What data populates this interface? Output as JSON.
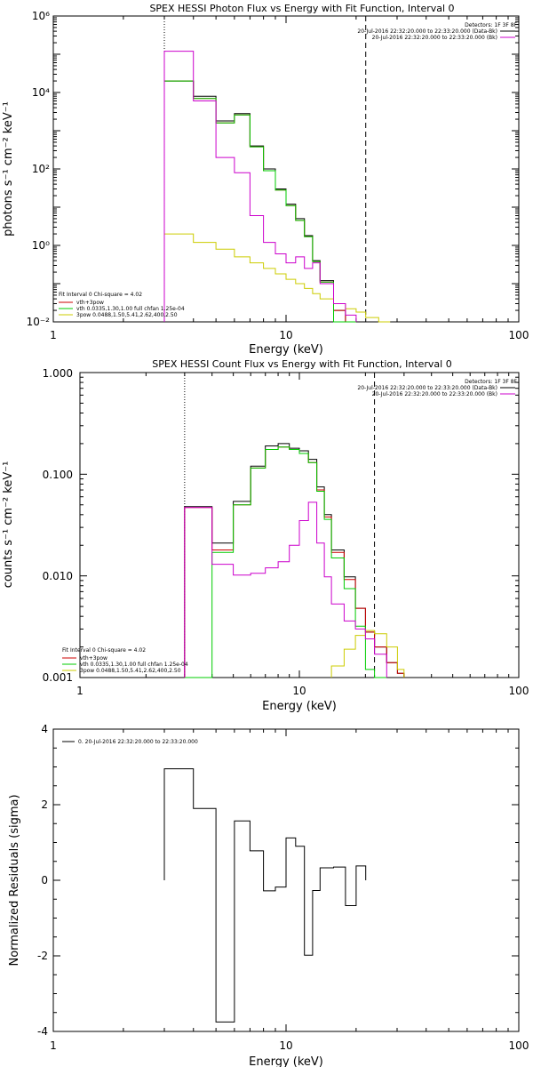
{
  "colors": {
    "total": "#000000",
    "vth_plus_3pow": "#cc0000",
    "vth": "#00cc00",
    "three_pow": "#cccc00",
    "model": "#cc00cc"
  },
  "chart_data": [
    {
      "type": "line",
      "title": "SPEX HESSI Photon Flux vs Energy with Fit Function, Interval 0",
      "xlabel": "Energy (keV)",
      "ylabel": "photons s⁻¹ cm⁻² keV⁻¹",
      "xscale": "log",
      "yscale": "log",
      "xlim": [
        1,
        100
      ],
      "ylim": [
        0.01,
        1000000
      ],
      "x_ticks": [
        "1",
        "10",
        "100"
      ],
      "y_ticks": [
        "10⁻²",
        "10⁰",
        "10²",
        "10⁴",
        "10⁶"
      ],
      "legend_header": [
        "Detectors: 1F 3F 8F",
        "20-Jul-2016 22:32:20.000 to 22:33:20.000 (Data-Bk)",
        "20-Jul-2016 22:32:20.000 to 22:33:20.000 (Bk)"
      ],
      "fit_legend": [
        "Fit Interval 0   Chi-square = 4.02",
        "vth+3pow",
        "vth 0.0335,1.30,1.00  full chfan 1.25e-04",
        "3pow 0.0488,1.50,5.41,2.62,400,2.50"
      ],
      "vlines": [
        {
          "x": 3,
          "style": "dotted"
        },
        {
          "x": 22,
          "style": "dashed"
        }
      ],
      "bin_edges": [
        3,
        4,
        5,
        6,
        7,
        8,
        9,
        10,
        11,
        12,
        13,
        14,
        16,
        18,
        20,
        22,
        25,
        28,
        30
      ],
      "series": [
        {
          "name": "Data-Bk",
          "color_key": "total",
          "values": [
            20000,
            8000,
            1800,
            2800,
            400,
            100,
            30,
            12,
            5,
            1.8,
            0.4,
            0.12,
            0.02,
            0.01,
            null,
            null,
            null,
            null
          ]
        },
        {
          "name": "vth+3pow",
          "color_key": "vth_plus_3pow",
          "values": [
            20000,
            7000,
            1600,
            2600,
            380,
            90,
            28,
            11,
            4.5,
            1.7,
            0.38,
            0.11,
            0.02,
            0.01,
            null,
            null,
            null,
            null
          ]
        },
        {
          "name": "vth",
          "color_key": "vth",
          "values": [
            20000,
            7000,
            1600,
            2600,
            380,
            90,
            28,
            11,
            4.5,
            1.7,
            0.38,
            0.11,
            0.01,
            0.005,
            null,
            null,
            null,
            null
          ]
        },
        {
          "name": "3pow",
          "color_key": "three_pow",
          "values": [
            2,
            1.2,
            0.8,
            0.5,
            0.35,
            0.25,
            0.18,
            0.13,
            0.1,
            0.075,
            0.055,
            0.04,
            0.03,
            0.022,
            0.018,
            0.013,
            0.01,
            null
          ]
        },
        {
          "name": "Bk",
          "color_key": "model",
          "values": [
            120000,
            6000,
            200,
            80,
            6,
            1.2,
            0.6,
            0.35,
            0.5,
            0.25,
            0.35,
            0.1,
            0.03,
            0.015,
            null,
            null,
            null,
            null
          ]
        }
      ]
    },
    {
      "type": "line",
      "title": "SPEX HESSI Count Flux vs Energy with Fit Function, Interval 0",
      "xlabel": "Energy (keV)",
      "ylabel": "counts s⁻¹ cm⁻² keV⁻¹",
      "xscale": "log",
      "yscale": "log",
      "xlim": [
        1,
        100
      ],
      "ylim": [
        0.001,
        1
      ],
      "x_ticks": [
        "1",
        "10",
        "100"
      ],
      "y_ticks": [
        "0.001",
        "0.010",
        "0.100",
        "1.000"
      ],
      "legend_header": [
        "Detectors: 1F 3F 8F",
        "20-Jul-2016 22:32:20.000 to 22:33:20.000 (Data-Bk)",
        "20-Jul-2016 22:32:20.000 to 22:33:20.000 (Bk)"
      ],
      "fit_legend": [
        "Fit Interval 0   Chi-square = 4.02",
        "vth+3pow",
        "vth 0.0335,1.30,1.00  full chfan 1.25e-04",
        "3pow 0.0488,1.50,5.41,2.62,400,2.50"
      ],
      "vlines": [
        {
          "x": 3,
          "style": "dotted"
        },
        {
          "x": 22,
          "style": "dashed"
        }
      ],
      "bin_edges": [
        3,
        4,
        5,
        6,
        7,
        8,
        9,
        10,
        11,
        12,
        13,
        14,
        16,
        18,
        20,
        22,
        25,
        28,
        30
      ],
      "series": [
        {
          "name": "Data-Bk",
          "color_key": "total",
          "values": [
            0.048,
            0.021,
            0.054,
            0.12,
            0.19,
            0.2,
            0.18,
            0.17,
            0.14,
            0.075,
            0.04,
            0.018,
            0.0098,
            0.0048,
            0.0028,
            0.002,
            0.0014,
            0.0011
          ]
        },
        {
          "name": "vth+3pow",
          "color_key": "vth_plus_3pow",
          "values": [
            0.047,
            0.018,
            0.05,
            0.115,
            0.175,
            0.185,
            0.175,
            0.16,
            0.13,
            0.07,
            0.038,
            0.017,
            0.0092,
            0.0048,
            0.0028,
            0.002,
            0.0014,
            0.0011
          ]
        },
        {
          "name": "vth",
          "color_key": "vth",
          "values": [
            0.0008,
            0.017,
            0.05,
            0.115,
            0.175,
            0.185,
            0.175,
            0.16,
            0.13,
            0.068,
            0.036,
            0.015,
            0.0075,
            0.0032,
            0.0012,
            0.0008,
            null,
            null
          ]
        },
        {
          "name": "3pow",
          "color_key": "three_pow",
          "values": [
            null,
            null,
            null,
            null,
            null,
            null,
            null,
            null,
            null,
            null,
            null,
            0.0013,
            0.0019,
            0.0026,
            0.0029,
            0.0027,
            0.002,
            0.0012
          ]
        },
        {
          "name": "Bk",
          "color_key": "model",
          "values": [
            0.047,
            0.013,
            0.0102,
            0.0106,
            0.012,
            0.0138,
            0.02,
            0.035,
            0.053,
            0.021,
            0.0098,
            0.0053,
            0.0036,
            0.003,
            0.0024,
            0.0017,
            null,
            null
          ]
        }
      ]
    },
    {
      "type": "line",
      "title": "",
      "xlabel": "Energy (keV)",
      "ylabel": "Normalized Residuals (sigma)",
      "xscale": "log",
      "yscale": "linear",
      "xlim": [
        1,
        100
      ],
      "ylim": [
        -4,
        4
      ],
      "x_ticks": [
        "1",
        "10",
        "100"
      ],
      "y_ticks": [
        "-4",
        "-2",
        "0",
        "2",
        "4"
      ],
      "legend": "0. 20-Jul-2016 22:32:20.000 to 22:33:20.000",
      "bin_edges": [
        3,
        4,
        5,
        6,
        7,
        8,
        9,
        10,
        11,
        12,
        13,
        14,
        16,
        18,
        20,
        22
      ],
      "series": [
        {
          "name": "0",
          "color_key": "total",
          "values": [
            2.95,
            1.9,
            -3.75,
            1.57,
            0.78,
            -0.28,
            -0.18,
            1.12,
            0.9,
            -1.98,
            -0.27,
            0.33,
            0.35,
            -0.67,
            0.38
          ]
        }
      ]
    }
  ]
}
